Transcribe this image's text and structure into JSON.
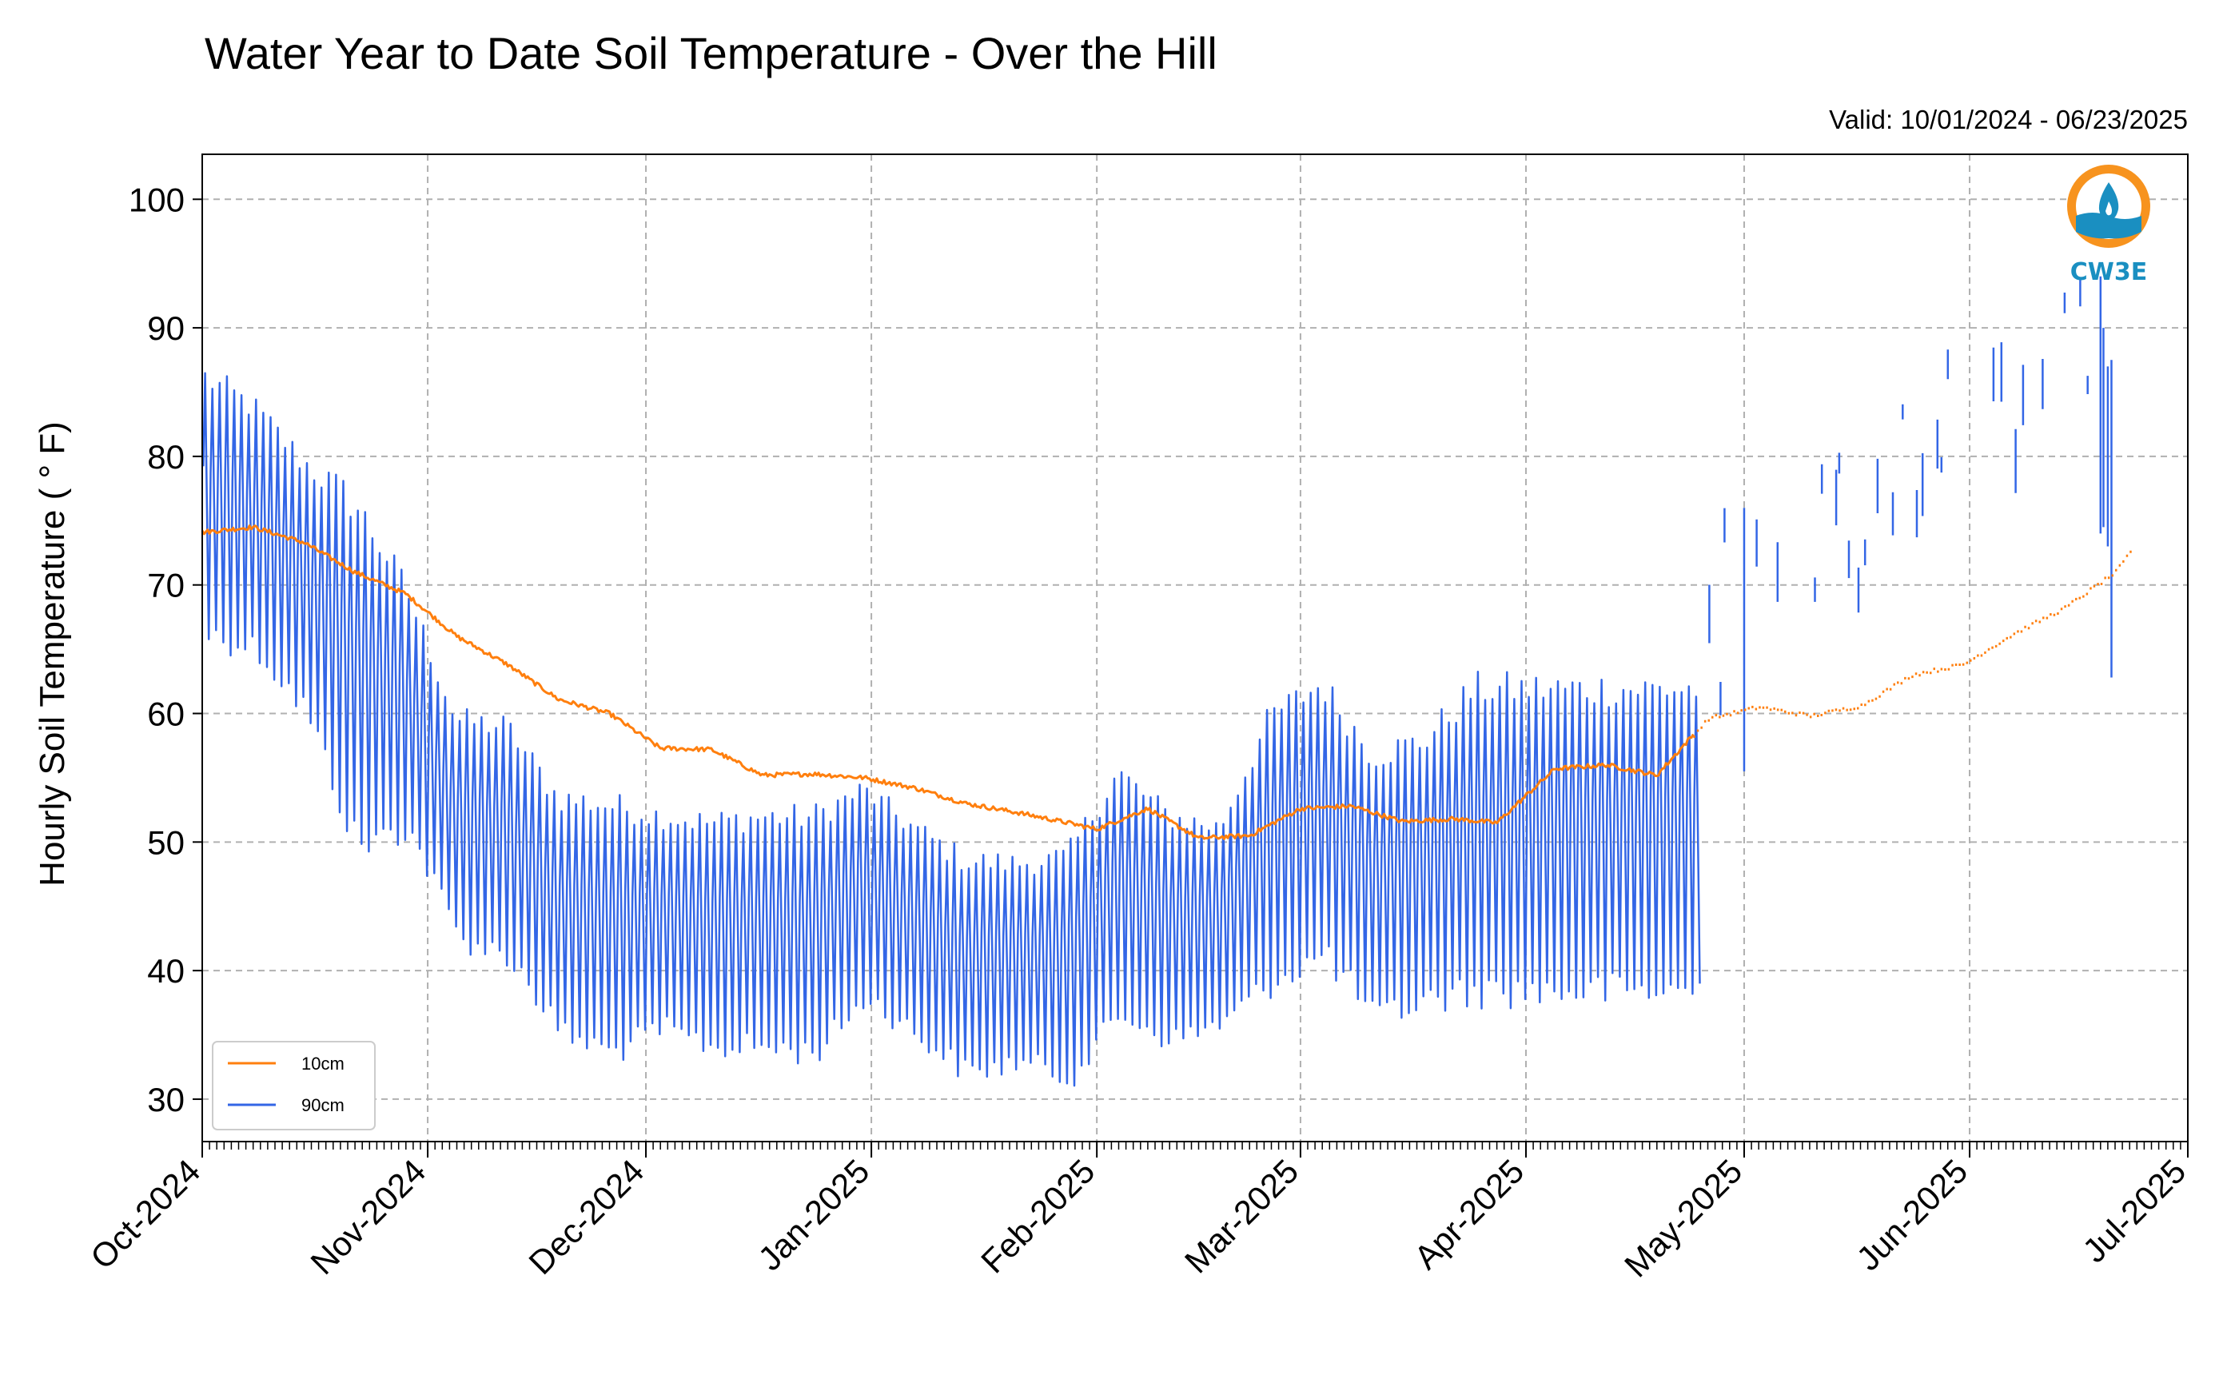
{
  "chart_data": {
    "type": "line",
    "title": "Water Year to Date Soil Temperature - Over the Hill",
    "subtitle": "Valid: 10/01/2024 - 06/23/2025",
    "xlabel": "",
    "ylabel": "Hourly Soil Temperature ( ° F)",
    "ylim": [
      26.7,
      103.5
    ],
    "xlim": [
      "2024-10-01",
      "2025-07-01"
    ],
    "yticks": [
      30,
      40,
      50,
      60,
      70,
      80,
      90,
      100
    ],
    "xticks": [
      "2024-10-01",
      "2024-11-01",
      "2024-12-01",
      "2025-01-01",
      "2025-02-01",
      "2025-03-01",
      "2025-04-01",
      "2025-05-01",
      "2025-06-01",
      "2025-07-01"
    ],
    "xtick_labels": [
      "Oct-2024",
      "Nov-2024",
      "Dec-2024",
      "Jan-2025",
      "Feb-2025",
      "Mar-2025",
      "Apr-2025",
      "May-2025",
      "Jun-2025",
      "Jul-2025"
    ],
    "grid": true,
    "legend_position": "lower-left",
    "series": [
      {
        "name": "10cm",
        "color": "#ff7f0e",
        "style": "solid line through 2025-04-24, sparse dotted afterwards",
        "x": [
          "2024-10-01",
          "2024-10-08",
          "2024-10-15",
          "2024-10-22",
          "2024-10-29",
          "2024-11-05",
          "2024-11-12",
          "2024-11-19",
          "2024-11-26",
          "2024-12-03",
          "2024-12-10",
          "2024-12-17",
          "2024-12-24",
          "2024-12-31",
          "2025-01-07",
          "2025-01-14",
          "2025-01-21",
          "2025-01-28",
          "2025-02-01",
          "2025-02-08",
          "2025-02-15",
          "2025-02-22",
          "2025-03-01",
          "2025-03-08",
          "2025-03-15",
          "2025-03-22",
          "2025-03-28",
          "2025-04-05",
          "2025-04-12",
          "2025-04-19",
          "2025-04-26",
          "2025-05-03",
          "2025-05-10",
          "2025-05-17",
          "2025-05-24",
          "2025-05-31",
          "2025-06-07",
          "2025-06-14",
          "2025-06-21",
          "2025-06-23"
        ],
        "values": [
          74.1,
          74.5,
          73.3,
          71.0,
          69.3,
          66.0,
          63.8,
          61.1,
          60.0,
          57.3,
          57.2,
          55.2,
          55.3,
          55.0,
          54.2,
          53.0,
          52.3,
          51.5,
          51.0,
          52.6,
          50.3,
          50.5,
          52.6,
          52.8,
          51.6,
          51.8,
          51.5,
          55.7,
          56.0,
          55.2,
          59.6,
          60.5,
          59.8,
          60.6,
          63.0,
          63.8,
          66.2,
          68.2,
          71.0,
          72.5
        ],
        "legend_label": "10cm"
      },
      {
        "name": "90cm",
        "color": "#3366e6",
        "style": "hourly oscillating line, continuous through 2025-04-24, fragmented segments afterwards",
        "x": [
          "2024-10-01",
          "2024-10-08",
          "2024-10-15",
          "2024-10-22",
          "2024-10-29",
          "2024-11-05",
          "2024-11-12",
          "2024-11-19",
          "2024-11-26",
          "2024-12-03",
          "2024-12-10",
          "2024-12-17",
          "2024-12-24",
          "2024-12-31",
          "2025-01-07",
          "2025-01-14",
          "2025-01-21",
          "2025-01-28",
          "2025-02-04",
          "2025-02-11",
          "2025-02-18",
          "2025-02-25",
          "2025-03-04",
          "2025-03-11",
          "2025-03-18",
          "2025-03-25"
        ],
        "max": [
          87.5,
          85.0,
          80.7,
          78.0,
          71.0,
          60.5,
          60.0,
          54.5,
          54.0,
          53.0,
          52.5,
          53.0,
          53.0,
          55.0,
          52.0,
          49.5,
          49.2,
          49.8,
          56.5,
          53.0,
          52.0,
          61.0,
          63.5,
          58.0,
          59.0,
          63.3
        ],
        "min": [
          65.0,
          64.0,
          59.0,
          48.0,
          50.0,
          41.5,
          40.0,
          34.0,
          32.5,
          34.5,
          33.0,
          33.0,
          32.5,
          37.0,
          34.0,
          31.0,
          32.0,
          30.7,
          35.5,
          33.5,
          35.0,
          38.0,
          40.0,
          35.0,
          36.5,
          37.0
        ],
        "fragmented_after": "2025-04-24",
        "late_range": [
          55.5,
          94.7
        ],
        "legend_label": "90cm"
      }
    ]
  },
  "logo": {
    "text": "CW3E",
    "icon": "water-drop-logo-icon",
    "accent_color": "#f7931e",
    "brand_color": "#1a8fc1"
  }
}
